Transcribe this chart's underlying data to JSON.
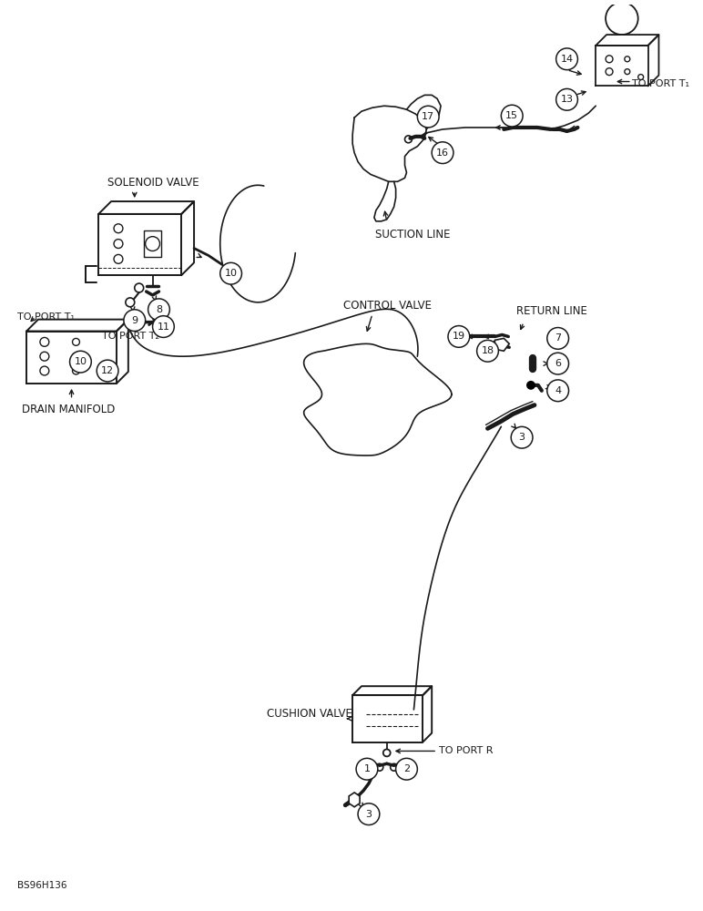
{
  "bg_color": "#ffffff",
  "line_color": "#1a1a1a",
  "text_color": "#1a1a1a",
  "footer": "BS96H136",
  "labels": {
    "suction_line": "SUCTION LINE",
    "solenoid_valve": "SOLENOID VALVE",
    "control_valve": "CONTROL VALVE",
    "return_line": "RETURN LINE",
    "drain_manifold": "DRAIN MANIFOLD",
    "cushion_valve": "CUSHION VALVE",
    "to_port_t1_top": "TO PORT T₁",
    "to_port_t2": "TO PORT T₂",
    "to_port_t1_bot": "TO PORT T₁",
    "to_port_r": "TO PORT R"
  },
  "figsize": [
    7.72,
    10.0
  ],
  "dpi": 100
}
